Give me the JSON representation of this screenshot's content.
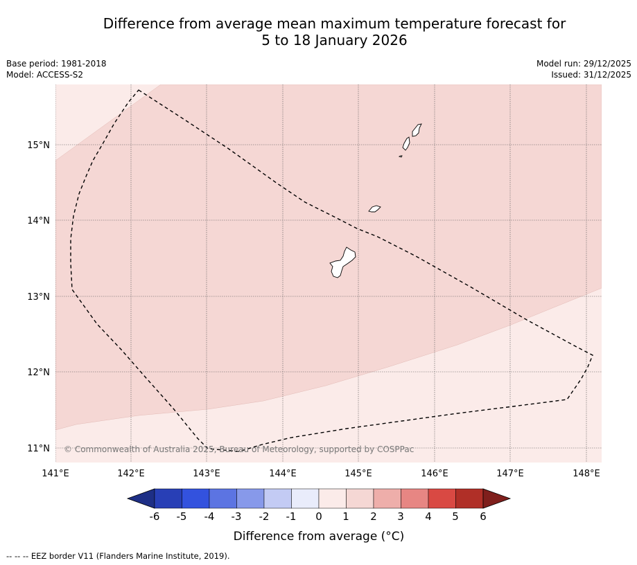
{
  "title": {
    "line1": "Difference from average mean maximum temperature forecast for",
    "line2": "5 to 18 January 2026"
  },
  "meta": {
    "base_period": "Base period: 1981-2018",
    "model": "Model: ACCESS-S2",
    "model_run": "Model run: 29/12/2025",
    "issued": "Issued: 31/12/2025"
  },
  "map": {
    "lon_range": [
      141.0,
      148.2
    ],
    "lat_range": [
      10.8,
      15.8
    ],
    "lon_ticks": [
      "141°E",
      "142°E",
      "143°E",
      "144°E",
      "145°E",
      "146°E",
      "147°E",
      "148°E"
    ],
    "lat_ticks": [
      "11°N",
      "12°N",
      "13°N",
      "14°N",
      "15°N"
    ],
    "copyright": "© Commonwealth of Australia 2025, Bureau of Meteorology, supported by COSPPac",
    "colors": {
      "anomaly_0_1": "#fbebe9",
      "anomaly_1_2": "#f5d7d4"
    }
  },
  "colorbar": {
    "ticks": [
      "-6",
      "-5",
      "-4",
      "-3",
      "-2",
      "-1",
      "0",
      "1",
      "2",
      "3",
      "4",
      "5",
      "6"
    ],
    "colors": [
      "#1e2f86",
      "#283fb6",
      "#3352de",
      "#5c74e2",
      "#8799ea",
      "#c3cbf4",
      "#e9ecfb",
      "#fbebe9",
      "#f5d7d4",
      "#eeaeaa",
      "#e78683",
      "#d94943",
      "#b02f27",
      "#7f1f1c"
    ],
    "label": "Difference from average (°C)"
  },
  "footer": "--  --  -- EEZ border V11 (Flanders Marine Institute, 2019)."
}
